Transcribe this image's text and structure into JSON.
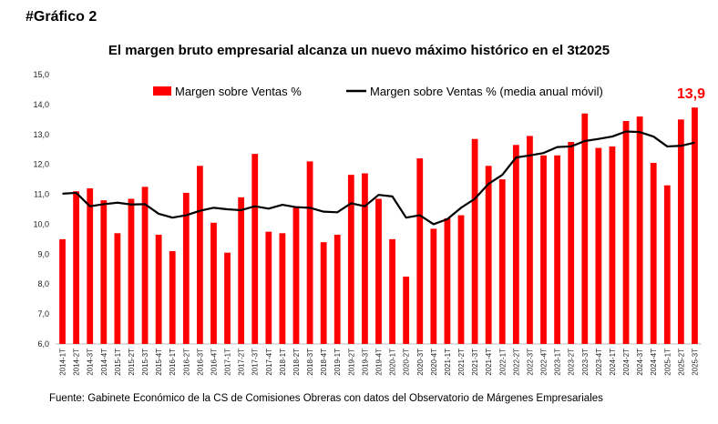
{
  "header": {
    "figure_label": "#Gráfico 2",
    "source": "Fuente: Gabinete Económico de la CS de Comisiones Obreras con datos del Observatorio de Márgenes Empresariales"
  },
  "chart_data": {
    "type": "bar",
    "title": "El margen bruto empresarial alcanza un nuevo máximo histórico en el 3t2025",
    "ylim": [
      6.0,
      15.0
    ],
    "yticks": [
      "6,0",
      "7,0",
      "8,0",
      "9,0",
      "10,0",
      "11,0",
      "12,0",
      "13,0",
      "14,0",
      "15,0"
    ],
    "categories": [
      "2014-1T",
      "2014-2T",
      "2014-3T",
      "2014-4T",
      "2015-1T",
      "2015-2T",
      "2015-3T",
      "2015-4T",
      "2016-1T",
      "2016-2T",
      "2016-3T",
      "2016-4T",
      "2017-1T",
      "2017-2T",
      "2017-3T",
      "2017-4T",
      "2018-1T",
      "2018-2T",
      "2018-3T",
      "2018-4T",
      "2019-1T",
      "2019-2T",
      "2019-3T",
      "2019-4T",
      "2020-1T",
      "2020-2T",
      "2020-3T",
      "2020-4T",
      "2021-1T",
      "2021-2T",
      "2021-3T",
      "2021-4T",
      "2022-1T",
      "2022-2T",
      "2022-3T",
      "2022-4T",
      "2023-1T",
      "2023-2T",
      "2023-3T",
      "2023-4T",
      "2024-1T",
      "2024-2T",
      "2024-3T",
      "2024-4T",
      "2025-1T",
      "2025-2T",
      "2025-3T"
    ],
    "series": [
      {
        "name": "Margen sobre Ventas %",
        "kind": "bar",
        "color": "#ff0000",
        "values": [
          9.5,
          11.1,
          11.2,
          10.8,
          9.7,
          10.85,
          11.25,
          9.65,
          9.1,
          11.05,
          11.95,
          10.05,
          9.05,
          10.9,
          12.35,
          9.75,
          9.7,
          10.6,
          12.1,
          9.4,
          9.65,
          11.65,
          11.7,
          10.85,
          9.5,
          8.25,
          12.2,
          9.85,
          10.2,
          10.3,
          12.85,
          11.95,
          11.5,
          12.65,
          12.95,
          12.3,
          12.3,
          12.75,
          13.7,
          12.55,
          12.6,
          13.45,
          13.6,
          12.05,
          11.3,
          13.5,
          13.9
        ]
      },
      {
        "name": "Margen sobre Ventas % (media anual móvil)",
        "kind": "line",
        "color": "#000000",
        "values": [
          11.02,
          11.05,
          10.6,
          10.67,
          10.72,
          10.66,
          10.67,
          10.35,
          10.22,
          10.3,
          10.45,
          10.55,
          10.5,
          10.47,
          10.6,
          10.52,
          10.65,
          10.57,
          10.55,
          10.42,
          10.4,
          10.7,
          10.6,
          10.98,
          10.93,
          10.22,
          10.3,
          10.0,
          10.17,
          10.55,
          10.85,
          11.35,
          11.65,
          12.23,
          12.3,
          12.38,
          12.58,
          12.6,
          12.78,
          12.85,
          12.93,
          13.1,
          13.08,
          12.93,
          12.6,
          12.62,
          12.73
        ]
      }
    ],
    "last_value_label": "13,9"
  }
}
